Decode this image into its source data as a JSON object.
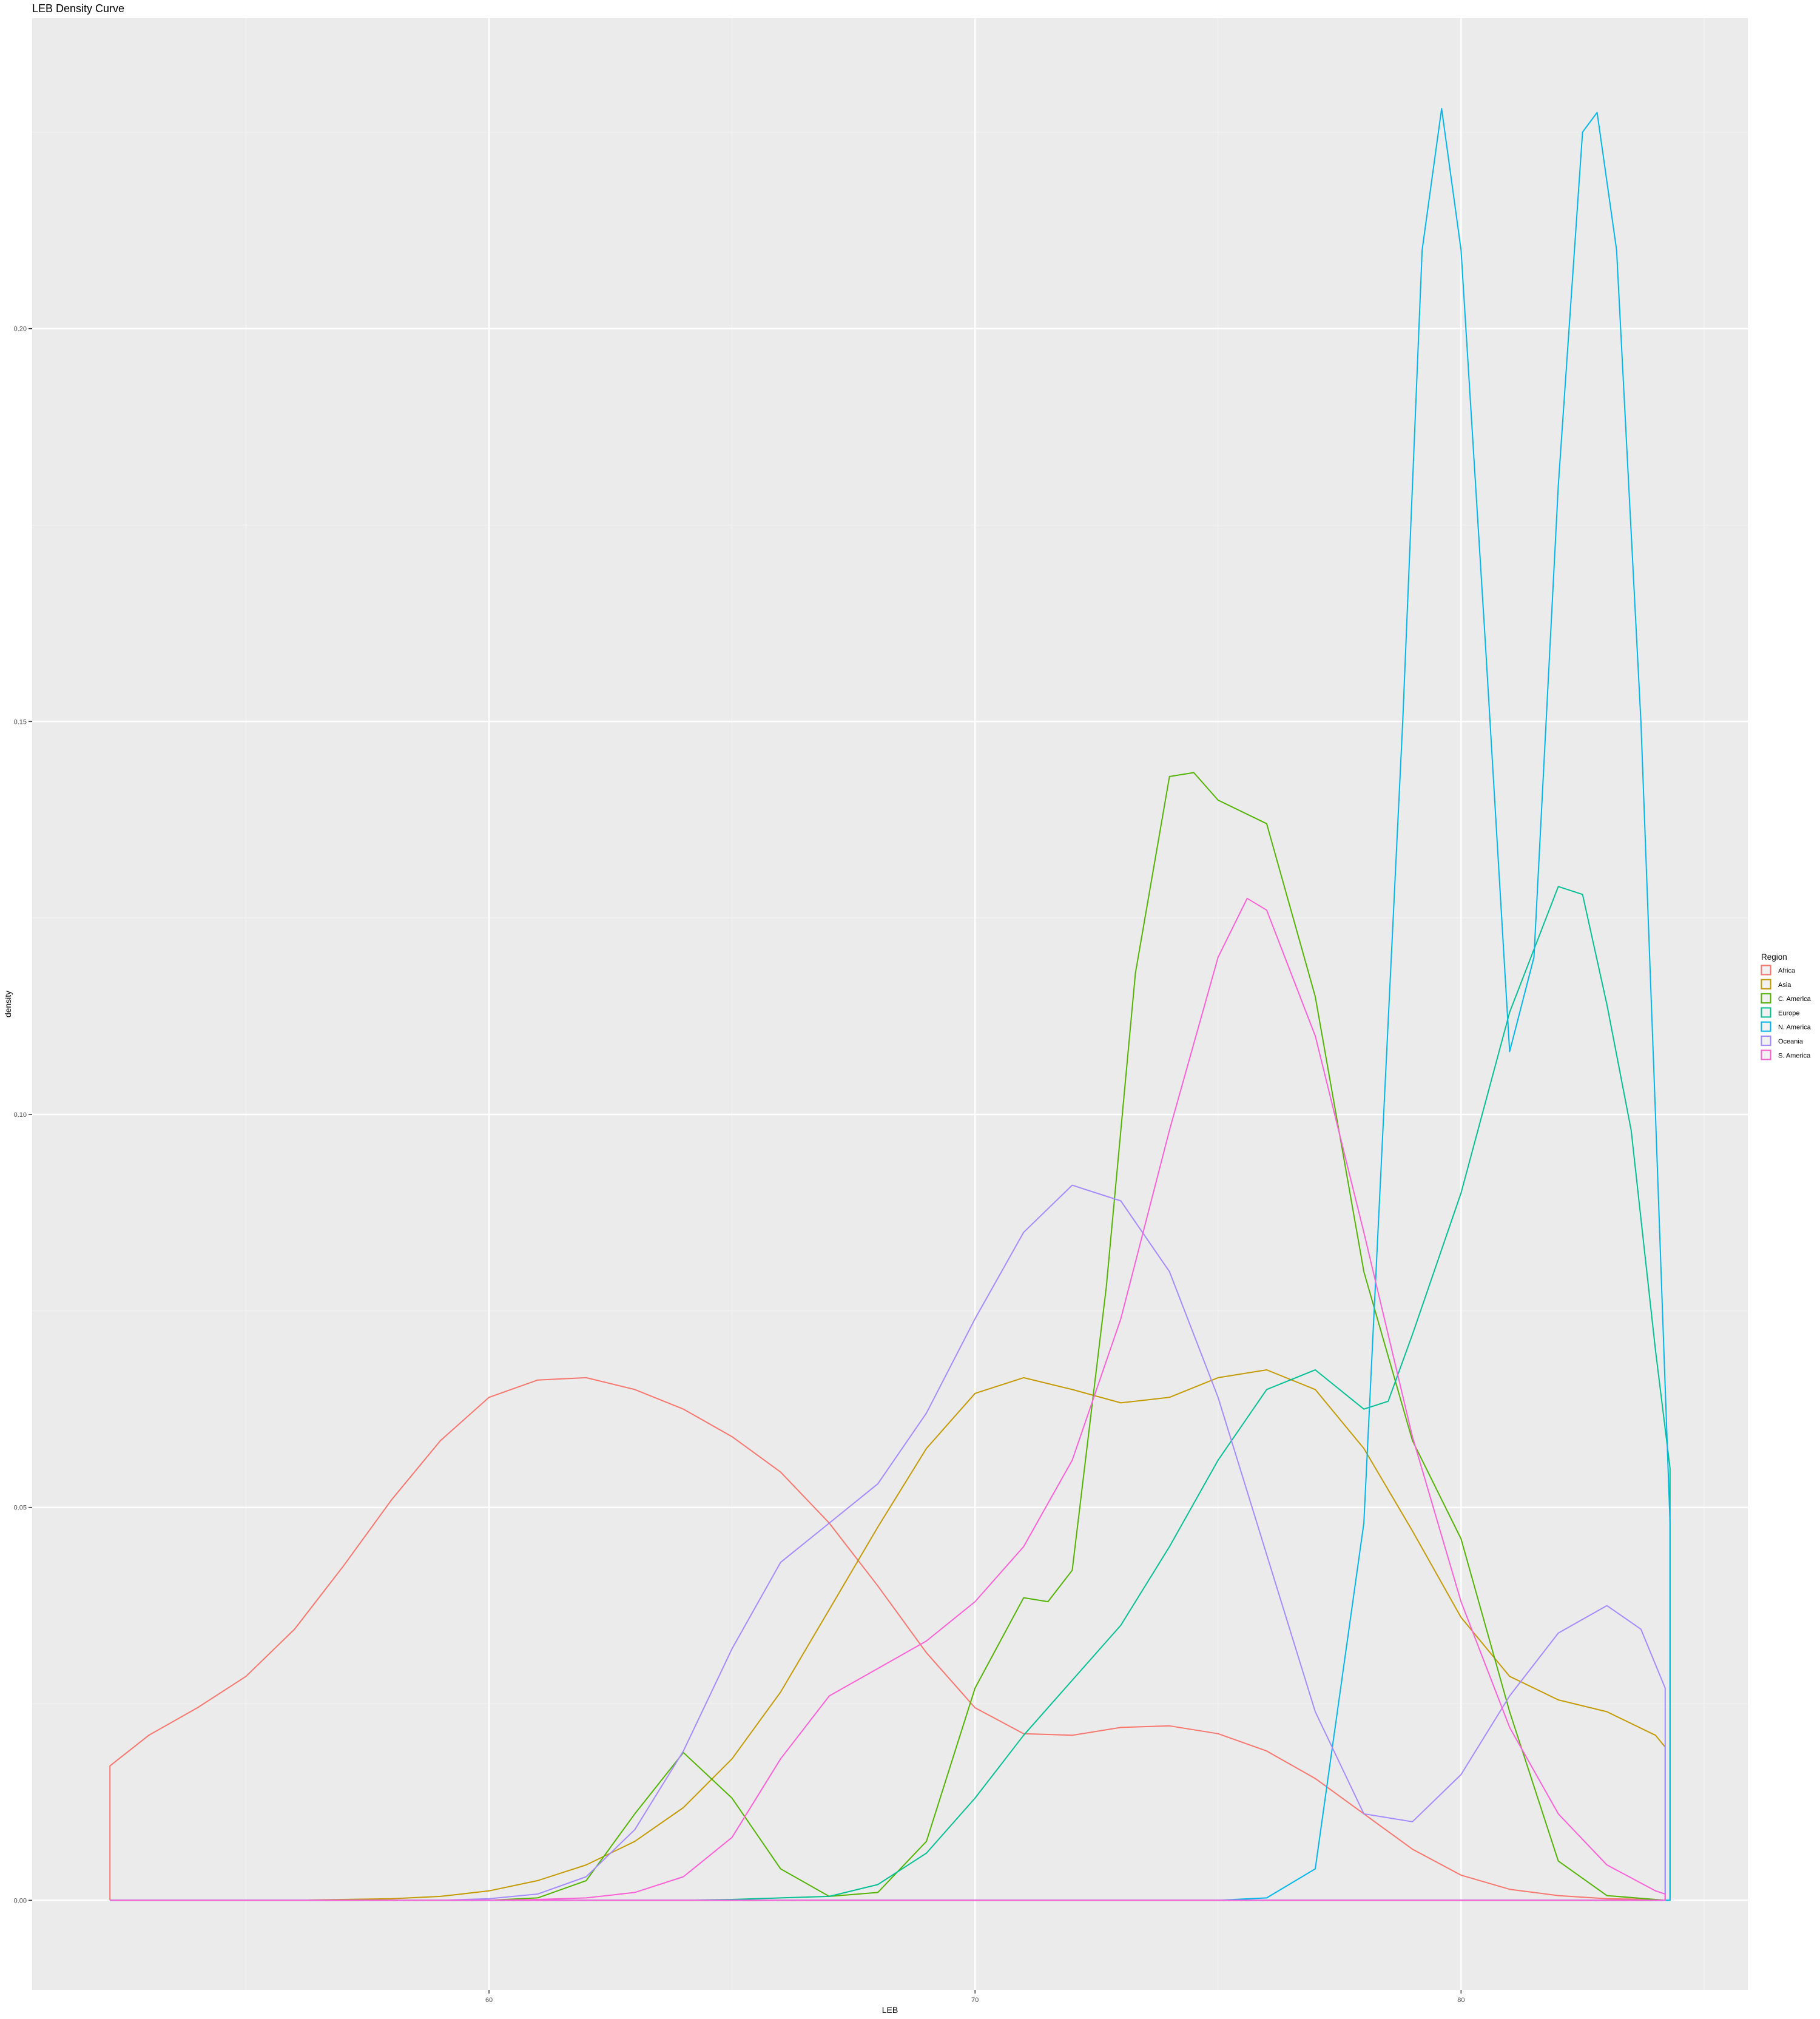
{
  "chart_data": {
    "type": "line",
    "title": "LEB Density Curve",
    "xlabel": "LEB",
    "ylabel": "density",
    "xlim": [
      50.6,
      85.9
    ],
    "ylim": [
      -0.0114,
      0.2395
    ],
    "x_ticks": [
      {
        "value": 60,
        "label": "60"
      },
      {
        "value": 70,
        "label": "70"
      },
      {
        "value": 80,
        "label": "80"
      }
    ],
    "y_ticks": [
      {
        "value": 0.0,
        "label": "0.00"
      },
      {
        "value": 0.05,
        "label": "0.05"
      },
      {
        "value": 0.1,
        "label": "0.10"
      },
      {
        "value": 0.15,
        "label": "0.15"
      },
      {
        "value": 0.2,
        "label": "0.20"
      }
    ],
    "grid": true,
    "legend": {
      "title": "Region",
      "position": "right"
    },
    "series": [
      {
        "name": "Africa",
        "color": "#F8766D",
        "points": [
          [
            52.2,
            0
          ],
          [
            52.2,
            0.0171
          ],
          [
            53,
            0.021
          ],
          [
            54,
            0.0245
          ],
          [
            55,
            0.0285
          ],
          [
            56,
            0.0345
          ],
          [
            57,
            0.0425
          ],
          [
            58,
            0.051
          ],
          [
            59,
            0.0585
          ],
          [
            60,
            0.064
          ],
          [
            61,
            0.0662
          ],
          [
            62,
            0.0665
          ],
          [
            63,
            0.065
          ],
          [
            64,
            0.0625
          ],
          [
            65,
            0.059
          ],
          [
            66,
            0.0545
          ],
          [
            67,
            0.048
          ],
          [
            68,
            0.04
          ],
          [
            69,
            0.0315
          ],
          [
            70,
            0.0245
          ],
          [
            71,
            0.0212
          ],
          [
            72,
            0.021
          ],
          [
            73,
            0.022
          ],
          [
            74,
            0.0222
          ],
          [
            75,
            0.0212
          ],
          [
            76,
            0.019
          ],
          [
            77,
            0.0155
          ],
          [
            78,
            0.011
          ],
          [
            79,
            0.0065
          ],
          [
            80,
            0.0032
          ],
          [
            81,
            0.0014
          ],
          [
            82,
            0.0006
          ],
          [
            83,
            0.0002
          ],
          [
            84,
            0.0001
          ],
          [
            84.2,
            0
          ],
          [
            52.2,
            0
          ]
        ]
      },
      {
        "name": "Asia",
        "color": "#C49A00",
        "points": [
          [
            52.2,
            0
          ],
          [
            56,
            0
          ],
          [
            58,
            0.0002
          ],
          [
            59,
            0.0005
          ],
          [
            60,
            0.0012
          ],
          [
            61,
            0.0025
          ],
          [
            62,
            0.0045
          ],
          [
            63,
            0.0075
          ],
          [
            64,
            0.0118
          ],
          [
            65,
            0.018
          ],
          [
            66,
            0.0265
          ],
          [
            67,
            0.037
          ],
          [
            68,
            0.0475
          ],
          [
            69,
            0.0575
          ],
          [
            70,
            0.0645
          ],
          [
            71,
            0.0665
          ],
          [
            72,
            0.065
          ],
          [
            73,
            0.0633
          ],
          [
            74,
            0.064
          ],
          [
            75,
            0.0665
          ],
          [
            76,
            0.0675
          ],
          [
            77,
            0.065
          ],
          [
            78,
            0.0575
          ],
          [
            79,
            0.047
          ],
          [
            80,
            0.036
          ],
          [
            81,
            0.0285
          ],
          [
            82,
            0.0255
          ],
          [
            83,
            0.024
          ],
          [
            84,
            0.021
          ],
          [
            84.2,
            0.0195
          ],
          [
            84.2,
            0
          ],
          [
            52.2,
            0
          ]
        ]
      },
      {
        "name": "C. America",
        "color": "#53B400",
        "points": [
          [
            52.2,
            0
          ],
          [
            60,
            0
          ],
          [
            61,
            0.0003
          ],
          [
            62,
            0.0025
          ],
          [
            63,
            0.011
          ],
          [
            64,
            0.0188
          ],
          [
            65,
            0.013
          ],
          [
            66,
            0.004
          ],
          [
            67,
            0.0005
          ],
          [
            68,
            0.001
          ],
          [
            69,
            0.0075
          ],
          [
            70,
            0.027
          ],
          [
            71,
            0.0385
          ],
          [
            71.5,
            0.038
          ],
          [
            72,
            0.042
          ],
          [
            72.7,
            0.078
          ],
          [
            73.3,
            0.118
          ],
          [
            74,
            0.143
          ],
          [
            74.5,
            0.1435
          ],
          [
            75,
            0.14
          ],
          [
            76,
            0.137
          ],
          [
            77,
            0.115
          ],
          [
            78,
            0.08
          ],
          [
            79,
            0.0585
          ],
          [
            80,
            0.046
          ],
          [
            81,
            0.024
          ],
          [
            82,
            0.005
          ],
          [
            83,
            0.0006
          ],
          [
            84,
            0.0001
          ],
          [
            84.2,
            0
          ],
          [
            52.2,
            0
          ]
        ]
      },
      {
        "name": "Europe",
        "color": "#00C094",
        "points": [
          [
            52.2,
            0
          ],
          [
            64,
            0
          ],
          [
            65,
            0.0001
          ],
          [
            66,
            0.0003
          ],
          [
            67,
            0.0005
          ],
          [
            68,
            0.002
          ],
          [
            69,
            0.006
          ],
          [
            70,
            0.013
          ],
          [
            71,
            0.021
          ],
          [
            72,
            0.028
          ],
          [
            73,
            0.035
          ],
          [
            74,
            0.045
          ],
          [
            75,
            0.056
          ],
          [
            76,
            0.065
          ],
          [
            77,
            0.0675
          ],
          [
            78,
            0.0625
          ],
          [
            78.5,
            0.0635
          ],
          [
            79,
            0.072
          ],
          [
            80,
            0.09
          ],
          [
            81,
            0.113
          ],
          [
            82,
            0.129
          ],
          [
            82.5,
            0.128
          ],
          [
            83,
            0.114
          ],
          [
            83.5,
            0.098
          ],
          [
            84,
            0.07
          ],
          [
            84.3,
            0.055
          ],
          [
            84.3,
            0
          ],
          [
            52.2,
            0
          ]
        ]
      },
      {
        "name": "N. America",
        "color": "#00B6EB",
        "points": [
          [
            52.2,
            0
          ],
          [
            75,
            0
          ],
          [
            76,
            0.0003
          ],
          [
            77,
            0.004
          ],
          [
            78,
            0.048
          ],
          [
            78.8,
            0.15
          ],
          [
            79.2,
            0.21
          ],
          [
            79.6,
            0.228
          ],
          [
            80,
            0.21
          ],
          [
            80.5,
            0.16
          ],
          [
            81,
            0.108
          ],
          [
            81.5,
            0.12
          ],
          [
            82,
            0.18
          ],
          [
            82.5,
            0.225
          ],
          [
            82.8,
            0.2275
          ],
          [
            83.2,
            0.21
          ],
          [
            83.7,
            0.15
          ],
          [
            84,
            0.1
          ],
          [
            84.3,
            0.048
          ],
          [
            84.3,
            0
          ],
          [
            52.2,
            0
          ]
        ]
      },
      {
        "name": "Oceania",
        "color": "#A58AFF",
        "points": [
          [
            52.2,
            0
          ],
          [
            59,
            0
          ],
          [
            60,
            0.0002
          ],
          [
            61,
            0.0008
          ],
          [
            62,
            0.003
          ],
          [
            63,
            0.009
          ],
          [
            64,
            0.019
          ],
          [
            65,
            0.032
          ],
          [
            66,
            0.043
          ],
          [
            67,
            0.048
          ],
          [
            68,
            0.053
          ],
          [
            69,
            0.062
          ],
          [
            70,
            0.074
          ],
          [
            71,
            0.085
          ],
          [
            72,
            0.091
          ],
          [
            73,
            0.089
          ],
          [
            74,
            0.08
          ],
          [
            75,
            0.064
          ],
          [
            76,
            0.044
          ],
          [
            77,
            0.024
          ],
          [
            78,
            0.011
          ],
          [
            79,
            0.01
          ],
          [
            80,
            0.016
          ],
          [
            81,
            0.026
          ],
          [
            82,
            0.034
          ],
          [
            83,
            0.0375
          ],
          [
            83.7,
            0.0345
          ],
          [
            84.2,
            0.027
          ],
          [
            84.2,
            0
          ],
          [
            52.2,
            0
          ]
        ]
      },
      {
        "name": "S. America",
        "color": "#FB61D7",
        "points": [
          [
            52.2,
            0
          ],
          [
            60,
            0
          ],
          [
            61,
            0.0001
          ],
          [
            62,
            0.0003
          ],
          [
            63,
            0.001
          ],
          [
            64,
            0.003
          ],
          [
            65,
            0.008
          ],
          [
            66,
            0.018
          ],
          [
            67,
            0.026
          ],
          [
            68,
            0.0295
          ],
          [
            69,
            0.033
          ],
          [
            70,
            0.038
          ],
          [
            71,
            0.045
          ],
          [
            72,
            0.056
          ],
          [
            73,
            0.074
          ],
          [
            74,
            0.098
          ],
          [
            75,
            0.12
          ],
          [
            75.6,
            0.1275
          ],
          [
            76,
            0.126
          ],
          [
            77,
            0.11
          ],
          [
            78,
            0.085
          ],
          [
            79,
            0.059
          ],
          [
            80,
            0.038
          ],
          [
            81,
            0.022
          ],
          [
            82,
            0.011
          ],
          [
            83,
            0.0045
          ],
          [
            84,
            0.0012
          ],
          [
            84.2,
            0.0008
          ],
          [
            84.2,
            0
          ],
          [
            52.2,
            0
          ]
        ]
      }
    ]
  }
}
